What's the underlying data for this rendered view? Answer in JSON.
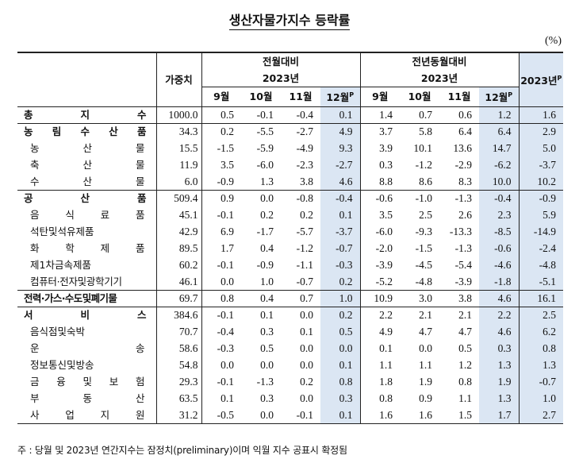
{
  "title": "생산자물가지수 등락률",
  "unit": "(%)",
  "header": {
    "weight": "가중치",
    "mom_group": "전월대비",
    "yoy_group": "전년동월대비",
    "year_label": "2023년",
    "annual_label": "2023년",
    "annual_sup": "P",
    "months": [
      "9월",
      "10월",
      "11월",
      "12월"
    ],
    "prelim_sup": "P"
  },
  "rows": [
    {
      "label": "총 지 수",
      "type": "major",
      "weight": "1000.0",
      "mom": [
        "0.5",
        "-0.1",
        "-0.4",
        "0.1"
      ],
      "yoy": [
        "1.4",
        "0.7",
        "0.6",
        "1.2"
      ],
      "annual": "1.6"
    },
    {
      "label": "농 림 수 산 품",
      "type": "major",
      "weight": "34.3",
      "mom": [
        "0.2",
        "-5.5",
        "-2.7",
        "4.9"
      ],
      "yoy": [
        "3.7",
        "5.8",
        "6.4",
        "6.4"
      ],
      "annual": "2.9"
    },
    {
      "label": "농 산 물",
      "type": "sub",
      "weight": "15.5",
      "mom": [
        "-1.5",
        "-5.9",
        "-4.9",
        "9.3"
      ],
      "yoy": [
        "3.9",
        "10.1",
        "13.6",
        "14.7"
      ],
      "annual": "5.0"
    },
    {
      "label": "축 산 물",
      "type": "sub",
      "weight": "11.9",
      "mom": [
        "3.5",
        "-6.0",
        "-2.3",
        "-2.7"
      ],
      "yoy": [
        "0.3",
        "-1.2",
        "-2.9",
        "-6.2"
      ],
      "annual": "-3.7"
    },
    {
      "label": "수 산 물",
      "type": "sub",
      "weight": "6.0",
      "mom": [
        "-0.9",
        "1.3",
        "3.8",
        "4.6"
      ],
      "yoy": [
        "8.8",
        "8.6",
        "8.3",
        "10.0"
      ],
      "annual": "10.2"
    },
    {
      "label": "공 산 품",
      "type": "major",
      "weight": "509.4",
      "mom": [
        "0.9",
        "0.0",
        "-0.8",
        "-0.4"
      ],
      "yoy": [
        "-0.6",
        "-1.0",
        "-1.3",
        "-0.4"
      ],
      "annual": "-0.9"
    },
    {
      "label": "음 식 료 품",
      "type": "sub",
      "weight": "45.1",
      "mom": [
        "-0.1",
        "0.2",
        "0.2",
        "0.1"
      ],
      "yoy": [
        "3.5",
        "2.5",
        "2.6",
        "2.3"
      ],
      "annual": "5.9"
    },
    {
      "label": "석탄및석유제품",
      "type": "sub",
      "weight": "42.9",
      "mom": [
        "6.9",
        "-1.7",
        "-5.7",
        "-3.7"
      ],
      "yoy": [
        "-6.0",
        "-9.3",
        "-13.3",
        "-8.5"
      ],
      "annual": "-14.9"
    },
    {
      "label": "화 학 제 품",
      "type": "sub",
      "weight": "89.5",
      "mom": [
        "1.7",
        "0.4",
        "-1.2",
        "-0.7"
      ],
      "yoy": [
        "-2.0",
        "-1.5",
        "-1.3",
        "-0.6"
      ],
      "annual": "-2.4"
    },
    {
      "label": "제1차금속제품",
      "type": "sub",
      "weight": "60.2",
      "mom": [
        "-0.1",
        "-0.9",
        "-1.1",
        "-0.3"
      ],
      "yoy": [
        "-3.9",
        "-4.5",
        "-5.4",
        "-4.6"
      ],
      "annual": "-4.8"
    },
    {
      "label": "컴퓨터·전자및광학기기",
      "type": "sub-nj",
      "weight": "46.1",
      "mom": [
        "0.0",
        "1.0",
        "-0.7",
        "0.2"
      ],
      "yoy": [
        "-5.2",
        "-4.8",
        "-3.9",
        "-1.8"
      ],
      "annual": "-5.1"
    },
    {
      "label": "전력·가스·수도및폐기물",
      "type": "major-nj",
      "weight": "69.7",
      "mom": [
        "0.8",
        "0.4",
        "0.7",
        "1.0"
      ],
      "yoy": [
        "10.9",
        "3.0",
        "3.8",
        "4.6"
      ],
      "annual": "16.1"
    },
    {
      "label": "서 비 스",
      "type": "major",
      "weight": "384.6",
      "mom": [
        "-0.1",
        "0.1",
        "0.0",
        "0.2"
      ],
      "yoy": [
        "2.2",
        "2.1",
        "2.1",
        "2.2"
      ],
      "annual": "2.5"
    },
    {
      "label": "음식점및숙박",
      "type": "sub",
      "weight": "70.7",
      "mom": [
        "-0.4",
        "0.3",
        "0.1",
        "0.5"
      ],
      "yoy": [
        "4.9",
        "4.7",
        "4.7",
        "4.6"
      ],
      "annual": "6.2"
    },
    {
      "label": "운 송",
      "type": "sub",
      "weight": "58.6",
      "mom": [
        "-0.3",
        "0.5",
        "0.0",
        "0.0"
      ],
      "yoy": [
        "0.1",
        "0.0",
        "0.5",
        "0.3"
      ],
      "annual": "0.8"
    },
    {
      "label": "정보통신및방송",
      "type": "sub",
      "weight": "54.8",
      "mom": [
        "0.0",
        "0.0",
        "0.0",
        "0.1"
      ],
      "yoy": [
        "1.1",
        "1.1",
        "1.2",
        "1.3"
      ],
      "annual": "1.3"
    },
    {
      "label": "금 융 및 보 험",
      "type": "sub",
      "weight": "29.3",
      "mom": [
        "-0.1",
        "-1.3",
        "0.2",
        "0.8"
      ],
      "yoy": [
        "1.8",
        "1.9",
        "0.8",
        "1.9"
      ],
      "annual": "-0.7"
    },
    {
      "label": "부 동 산",
      "type": "sub",
      "weight": "63.5",
      "mom": [
        "0.1",
        "0.3",
        "0.0",
        "0.3"
      ],
      "yoy": [
        "0.8",
        "0.9",
        "1.1",
        "1.3"
      ],
      "annual": "1.0"
    },
    {
      "label": "사 업 지 원",
      "type": "sub",
      "weight": "31.2",
      "mom": [
        "-0.5",
        "0.0",
        "-0.1",
        "0.1"
      ],
      "yoy": [
        "1.6",
        "1.6",
        "1.5",
        "1.7"
      ],
      "annual": "2.7"
    }
  ],
  "footnote": "주 : 당월 및 2023년 연간지수는 잠정치(preliminary)이며 익월 지수 공표시 확정됨"
}
